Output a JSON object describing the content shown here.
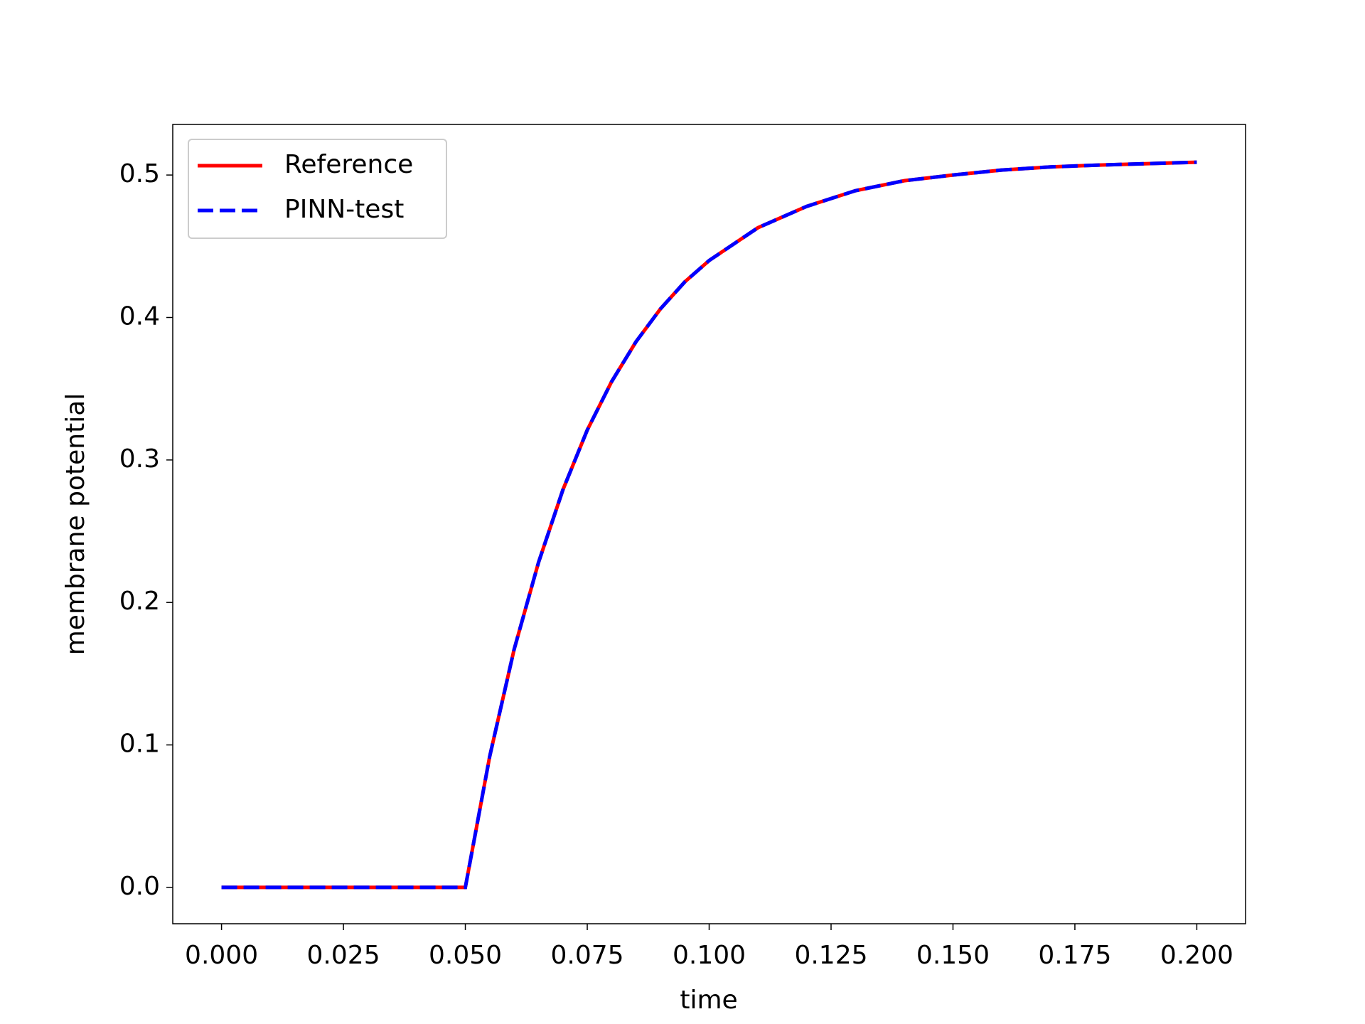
{
  "chart_data": {
    "type": "line",
    "x_label": "time",
    "y_label": "membrane potential",
    "x": [
      0,
      0.05,
      0.055,
      0.06,
      0.065,
      0.07,
      0.075,
      0.08,
      0.085,
      0.09,
      0.095,
      0.1,
      0.11,
      0.12,
      0.13,
      0.14,
      0.15,
      0.16,
      0.17,
      0.18,
      0.19,
      0.2
    ],
    "series": [
      {
        "name": "Reference",
        "color": "#ff0000",
        "style": "solid",
        "values": [
          0,
          0,
          0.092,
          0.167,
          0.228,
          0.279,
          0.321,
          0.355,
          0.383,
          0.406,
          0.425,
          0.44,
          0.463,
          0.478,
          0.489,
          0.496,
          0.5,
          0.5035,
          0.5057,
          0.507,
          0.508,
          0.509
        ]
      },
      {
        "name": "PINN-test",
        "color": "#0000ff",
        "style": "dashed",
        "values": [
          0,
          0,
          0.092,
          0.167,
          0.228,
          0.279,
          0.321,
          0.355,
          0.383,
          0.406,
          0.425,
          0.44,
          0.463,
          0.478,
          0.489,
          0.496,
          0.5,
          0.5035,
          0.5057,
          0.507,
          0.508,
          0.509
        ]
      }
    ],
    "xlim": [
      -0.01,
      0.21
    ],
    "ylim": [
      -0.0255,
      0.5355
    ],
    "xticks": [
      {
        "value": 0,
        "label": "0.000"
      },
      {
        "value": 0.025,
        "label": "0.025"
      },
      {
        "value": 0.05,
        "label": "0.050"
      },
      {
        "value": 0.075,
        "label": "0.075"
      },
      {
        "value": 0.1,
        "label": "0.100"
      },
      {
        "value": 0.125,
        "label": "0.125"
      },
      {
        "value": 0.15,
        "label": "0.150"
      },
      {
        "value": 0.175,
        "label": "0.175"
      },
      {
        "value": 0.2,
        "label": "0.200"
      }
    ],
    "yticks": [
      {
        "value": 0,
        "label": "0.0"
      },
      0.1,
      0.2,
      0.3,
      0.4,
      0.5
    ],
    "legend": "upper left",
    "grid": false
  }
}
